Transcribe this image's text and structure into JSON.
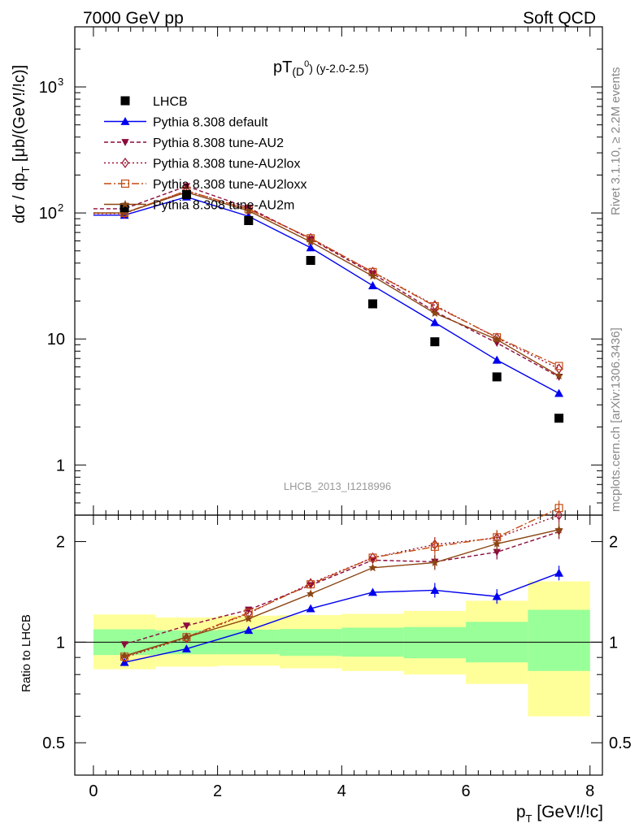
{
  "header": {
    "left": "7000 GeV pp",
    "right": "Soft QCD"
  },
  "side_labels": {
    "rivet": "Rivet 3.1.10, ≥ 2.2M events",
    "source": "mcplots.cern.ch [arXiv:1306.3436]"
  },
  "main_plot": {
    "title_main": "pT",
    "title_sub": "(D",
    "title_sup": "0",
    "title_close": ")",
    "title_range": " (y-2.0-2.5)",
    "ylabel": "dσ / dp",
    "ylabel_sub": "T",
    "ylabel_unit": " [μb/(GeV!/!c)]",
    "analysis_id": "LHCB_2013_I1218996",
    "y_ticks": [
      {
        "value": 1,
        "label": "1"
      },
      {
        "value": 10,
        "label": "10"
      },
      {
        "value": 100,
        "label": "10",
        "exp": "2"
      },
      {
        "value": 1000,
        "label": "10",
        "exp": "3"
      }
    ]
  },
  "ratio_plot": {
    "ylabel": "Ratio to LHCB",
    "y_ticks": [
      {
        "value": 0.5,
        "label": "0.5"
      },
      {
        "value": 1,
        "label": "1"
      },
      {
        "value": 2,
        "label": "2"
      }
    ]
  },
  "x_axis": {
    "label": "p",
    "label_sub": "T",
    "label_unit": " [GeV!/!c]",
    "ticks": [
      {
        "value": 0,
        "label": "0"
      },
      {
        "value": 2,
        "label": "2"
      },
      {
        "value": 4,
        "label": "4"
      },
      {
        "value": 6,
        "label": "6"
      },
      {
        "value": 8,
        "label": "8"
      }
    ]
  },
  "legend": [
    {
      "key": "lhcb",
      "label": "LHCB"
    },
    {
      "key": "default",
      "label": "Pythia 8.308 default"
    },
    {
      "key": "au2",
      "label": "Pythia 8.308 tune-AU2"
    },
    {
      "key": "au2lox",
      "label": "Pythia 8.308 tune-AU2lox"
    },
    {
      "key": "au2loxx",
      "label": "Pythia 8.308 tune-AU2loxx"
    },
    {
      "key": "au2m",
      "label": "Pythia 8.308 tune-AU2m"
    }
  ],
  "chart_data": {
    "type": "line",
    "title": "pT(D0) (y-2.0-2.5)",
    "xlabel": "pT [GeV!/!c]",
    "ylabel": "dσ / dpT [μb/(GeV!/!c)]",
    "xlim": [
      -0.3,
      8.2
    ],
    "ylim": [
      0.4,
      3000
    ],
    "y_scale": "log",
    "x": [
      0.5,
      1.5,
      2.5,
      3.5,
      4.5,
      5.5,
      6.5,
      7.5
    ],
    "data": {
      "name": "LHCB",
      "values": [
        110,
        140,
        87,
        42,
        19,
        9.5,
        5.0,
        2.35
      ]
    },
    "series": [
      {
        "name": "Pythia 8.308 default",
        "key": "default",
        "color": "#0000ee",
        "dash": "",
        "marker": "triangle-up",
        "values": [
          96,
          134,
          94,
          53,
          26.5,
          13.5,
          6.8,
          3.7
        ]
      },
      {
        "name": "Pythia 8.308 tune-AU2",
        "key": "au2",
        "color": "#8b0a3c",
        "dash": "5,3",
        "marker": "triangle-down",
        "values": [
          108,
          163,
          110,
          62,
          33,
          16.5,
          9.3,
          5.0
        ]
      },
      {
        "name": "Pythia 8.308 tune-AU2lox",
        "key": "au2lox",
        "color": "#a01030",
        "dash": "2,3",
        "marker": "diamond-open",
        "values": [
          99,
          150,
          107,
          63,
          34,
          18.5,
          10.2,
          5.8
        ]
      },
      {
        "name": "Pythia 8.308 tune-AU2loxx",
        "key": "au2loxx",
        "color": "#c24a10",
        "dash": "9,3,2,3",
        "marker": "square-open",
        "values": [
          100,
          150,
          107,
          63,
          34,
          18.2,
          10.3,
          6.1
        ]
      },
      {
        "name": "Pythia 8.308 tune-AU2m",
        "key": "au2m",
        "color": "#8b4513",
        "dash": "",
        "marker": "star",
        "values": [
          100,
          146,
          104,
          59,
          31.5,
          16.0,
          9.9,
          5.1
        ]
      }
    ],
    "ratio": {
      "ylabel": "Ratio to LHCB",
      "ylim": [
        0.4,
        2.4
      ],
      "y_scale": "log",
      "series": [
        {
          "key": "default",
          "values": [
            0.87,
            0.955,
            1.085,
            1.26,
            1.41,
            1.43,
            1.37,
            1.61
          ]
        },
        {
          "key": "au2",
          "values": [
            0.985,
            1.12,
            1.25,
            1.48,
            1.76,
            1.74,
            1.86,
            2.14
          ]
        },
        {
          "key": "au2lox",
          "values": [
            0.9,
            1.03,
            1.22,
            1.5,
            1.79,
            1.96,
            2.05,
            2.4
          ]
        },
        {
          "key": "au2loxx",
          "values": [
            0.905,
            1.035,
            1.225,
            1.49,
            1.79,
            1.93,
            2.06,
            2.6
          ]
        },
        {
          "key": "au2m",
          "values": [
            0.91,
            1.035,
            1.175,
            1.395,
            1.67,
            1.73,
            1.97,
            2.17
          ]
        }
      ],
      "bands": [
        {
          "x0": 0,
          "x1": 1,
          "inner": [
            0.915,
            1.093
          ],
          "outer": [
            0.83,
            1.21
          ]
        },
        {
          "x0": 1,
          "x1": 2,
          "inner": [
            0.92,
            1.085
          ],
          "outer": [
            0.845,
            1.185
          ]
        },
        {
          "x0": 2,
          "x1": 3,
          "inner": [
            0.92,
            1.09
          ],
          "outer": [
            0.85,
            1.2
          ]
        },
        {
          "x0": 3,
          "x1": 4,
          "inner": [
            0.91,
            1.095
          ],
          "outer": [
            0.835,
            1.205
          ]
        },
        {
          "x0": 4,
          "x1": 5,
          "inner": [
            0.905,
            1.105
          ],
          "outer": [
            0.82,
            1.215
          ]
        },
        {
          "x0": 5,
          "x1": 6,
          "inner": [
            0.895,
            1.11
          ],
          "outer": [
            0.8,
            1.24
          ]
        },
        {
          "x0": 6,
          "x1": 7,
          "inner": [
            0.87,
            1.15
          ],
          "outer": [
            0.75,
            1.33
          ]
        },
        {
          "x0": 7,
          "x1": 8,
          "inner": [
            0.82,
            1.25
          ],
          "outer": [
            0.6,
            1.52
          ]
        }
      ],
      "band_colors": {
        "inner": "#99ff99",
        "outer": "#ffff99"
      }
    }
  }
}
